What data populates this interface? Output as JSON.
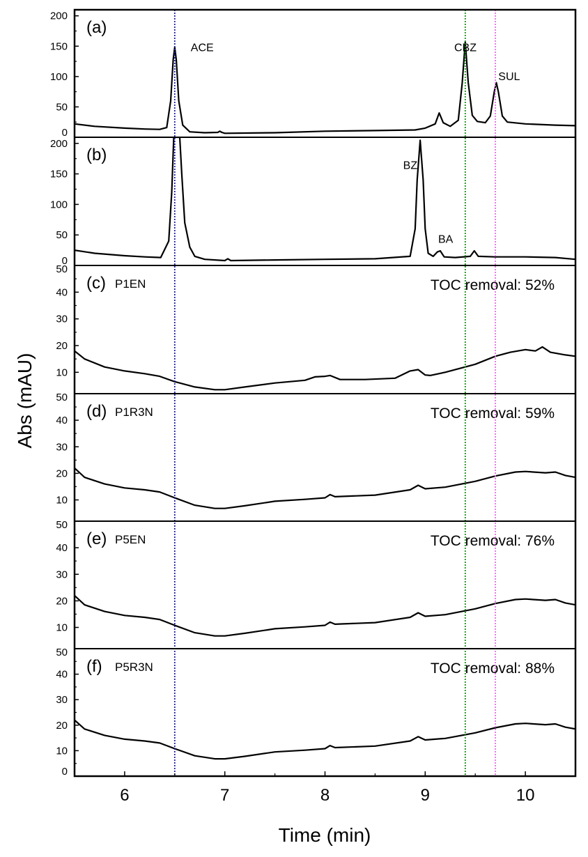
{
  "chart_data": {
    "type": "line",
    "xlabel": "Time (min)",
    "ylabel": "Abs (mAU)",
    "xlim": [
      5.5,
      10.5
    ],
    "x_ticks": [
      "6",
      "7",
      "8",
      "9",
      "10"
    ],
    "reference_lines": [
      {
        "name": "ACE",
        "x": 6.5,
        "color": "#1a1aa0"
      },
      {
        "name": "CBZ",
        "x": 9.4,
        "color": "#1c8a1c"
      },
      {
        "name": "SUL",
        "x": 9.7,
        "color": "#e070e0"
      }
    ],
    "panels": [
      {
        "label": "(a)",
        "sample": "",
        "toc": "",
        "ylim": [
          0,
          210
        ],
        "y_ticks": [
          "0",
          "50",
          "100",
          "150",
          "200"
        ],
        "annotations": [
          {
            "text": "ACE",
            "x": 6.66,
            "y": 142
          },
          {
            "text": "CBZ",
            "x": 9.29,
            "y": 142
          },
          {
            "text": "SUL",
            "x": 9.73,
            "y": 94
          }
        ],
        "points": [
          [
            5.5,
            22
          ],
          [
            5.7,
            18
          ],
          [
            6.0,
            15
          ],
          [
            6.2,
            13.5
          ],
          [
            6.35,
            13
          ],
          [
            6.42,
            16
          ],
          [
            6.46,
            60
          ],
          [
            6.485,
            128
          ],
          [
            6.5,
            148
          ],
          [
            6.515,
            128
          ],
          [
            6.54,
            60
          ],
          [
            6.58,
            20
          ],
          [
            6.65,
            9
          ],
          [
            6.8,
            7.5
          ],
          [
            6.93,
            8
          ],
          [
            6.95,
            10
          ],
          [
            6.97,
            8
          ],
          [
            7.0,
            6.5
          ],
          [
            7.5,
            7.5
          ],
          [
            8.0,
            10
          ],
          [
            8.5,
            11
          ],
          [
            8.9,
            12
          ],
          [
            9.0,
            15
          ],
          [
            9.1,
            22
          ],
          [
            9.14,
            40
          ],
          [
            9.18,
            24
          ],
          [
            9.25,
            18
          ],
          [
            9.33,
            28
          ],
          [
            9.37,
            90
          ],
          [
            9.4,
            157
          ],
          [
            9.43,
            90
          ],
          [
            9.47,
            36
          ],
          [
            9.52,
            26
          ],
          [
            9.6,
            24
          ],
          [
            9.65,
            35
          ],
          [
            9.69,
            75
          ],
          [
            9.71,
            90
          ],
          [
            9.73,
            75
          ],
          [
            9.77,
            35
          ],
          [
            9.82,
            25
          ],
          [
            10.0,
            22
          ],
          [
            10.3,
            20
          ],
          [
            10.5,
            19
          ]
        ]
      },
      {
        "label": "(b)",
        "sample": "",
        "toc": "",
        "ylim": [
          0,
          210
        ],
        "y_ticks": [
          "0",
          "50",
          "100",
          "150",
          "200"
        ],
        "annotations": [
          {
            "text": "BZ",
            "x": 8.78,
            "y": 158
          },
          {
            "text": "BA",
            "x": 9.13,
            "y": 37
          }
        ],
        "points": [
          [
            5.5,
            25
          ],
          [
            5.7,
            20
          ],
          [
            6.0,
            16
          ],
          [
            6.2,
            14
          ],
          [
            6.36,
            13
          ],
          [
            6.44,
            40
          ],
          [
            6.47,
            120
          ],
          [
            6.49,
            210
          ],
          [
            6.55,
            210
          ],
          [
            6.57,
            150
          ],
          [
            6.6,
            70
          ],
          [
            6.65,
            30
          ],
          [
            6.7,
            15
          ],
          [
            6.8,
            10
          ],
          [
            7.0,
            8
          ],
          [
            7.03,
            11
          ],
          [
            7.06,
            8
          ],
          [
            7.5,
            9
          ],
          [
            8.0,
            10
          ],
          [
            8.5,
            11
          ],
          [
            8.85,
            15
          ],
          [
            8.9,
            60
          ],
          [
            8.92,
            140
          ],
          [
            8.95,
            205
          ],
          [
            8.98,
            140
          ],
          [
            9.0,
            60
          ],
          [
            9.03,
            20
          ],
          [
            9.08,
            15
          ],
          [
            9.12,
            22
          ],
          [
            9.15,
            24
          ],
          [
            9.19,
            14
          ],
          [
            9.3,
            13
          ],
          [
            9.45,
            15
          ],
          [
            9.49,
            24
          ],
          [
            9.53,
            15
          ],
          [
            9.7,
            14
          ],
          [
            10.0,
            14
          ],
          [
            10.3,
            13
          ],
          [
            10.5,
            10
          ]
        ]
      },
      {
        "label": "(c)",
        "sample": "P1EN",
        "toc": "TOC removal: 52%",
        "ylim": [
          2,
          50
        ],
        "y_ticks": [
          "10",
          "20",
          "30",
          "40",
          "50"
        ],
        "annotations": [],
        "points": [
          [
            5.5,
            18
          ],
          [
            5.6,
            15
          ],
          [
            5.8,
            12
          ],
          [
            6.0,
            10.5
          ],
          [
            6.2,
            9.5
          ],
          [
            6.35,
            8.5
          ],
          [
            6.5,
            6.5
          ],
          [
            6.7,
            4.5
          ],
          [
            6.9,
            3.5
          ],
          [
            7.0,
            3.5
          ],
          [
            7.2,
            4.5
          ],
          [
            7.5,
            6
          ],
          [
            7.8,
            7
          ],
          [
            7.9,
            8.3
          ],
          [
            8.0,
            8.5
          ],
          [
            8.05,
            8.8
          ],
          [
            8.15,
            7.3
          ],
          [
            8.4,
            7.3
          ],
          [
            8.7,
            7.8
          ],
          [
            8.85,
            10.5
          ],
          [
            8.93,
            11
          ],
          [
            9.0,
            9
          ],
          [
            9.05,
            8.8
          ],
          [
            9.2,
            10
          ],
          [
            9.5,
            13
          ],
          [
            9.7,
            16
          ],
          [
            9.85,
            17.5
          ],
          [
            10.0,
            18.5
          ],
          [
            10.1,
            18
          ],
          [
            10.17,
            19.5
          ],
          [
            10.25,
            17.5
          ],
          [
            10.4,
            16.5
          ],
          [
            10.5,
            16
          ]
        ]
      },
      {
        "label": "(d)",
        "sample": "P1R3N",
        "toc": "TOC removal: 59%",
        "ylim": [
          2,
          50
        ],
        "y_ticks": [
          "10",
          "20",
          "30",
          "40",
          "50"
        ],
        "annotations": [],
        "points": [
          [
            5.5,
            22
          ],
          [
            5.6,
            18.5
          ],
          [
            5.8,
            16
          ],
          [
            6.0,
            14.5
          ],
          [
            6.2,
            13.8
          ],
          [
            6.35,
            13
          ],
          [
            6.5,
            10.8
          ],
          [
            6.7,
            8
          ],
          [
            6.9,
            6.8
          ],
          [
            7.0,
            6.8
          ],
          [
            7.2,
            7.8
          ],
          [
            7.5,
            9.5
          ],
          [
            7.8,
            10.2
          ],
          [
            8.0,
            10.8
          ],
          [
            8.05,
            12
          ],
          [
            8.1,
            11.2
          ],
          [
            8.5,
            11.8
          ],
          [
            8.85,
            13.8
          ],
          [
            8.93,
            15.5
          ],
          [
            9.0,
            14.2
          ],
          [
            9.2,
            14.8
          ],
          [
            9.5,
            17
          ],
          [
            9.7,
            19
          ],
          [
            9.9,
            20.5
          ],
          [
            10.0,
            20.7
          ],
          [
            10.2,
            20.2
          ],
          [
            10.3,
            20.5
          ],
          [
            10.4,
            19.2
          ],
          [
            10.5,
            18.5
          ]
        ]
      },
      {
        "label": "(e)",
        "sample": "P5EN",
        "toc": "TOC removal: 76%",
        "ylim": [
          2,
          50
        ],
        "y_ticks": [
          "10",
          "20",
          "30",
          "40",
          "50"
        ],
        "annotations": [],
        "points": [
          [
            5.5,
            22
          ],
          [
            5.6,
            18.5
          ],
          [
            5.8,
            16
          ],
          [
            6.0,
            14.5
          ],
          [
            6.2,
            13.8
          ],
          [
            6.35,
            13
          ],
          [
            6.5,
            10.8
          ],
          [
            6.7,
            8
          ],
          [
            6.9,
            6.8
          ],
          [
            7.0,
            6.8
          ],
          [
            7.2,
            7.8
          ],
          [
            7.5,
            9.5
          ],
          [
            7.8,
            10.2
          ],
          [
            8.0,
            10.8
          ],
          [
            8.05,
            12
          ],
          [
            8.1,
            11.2
          ],
          [
            8.5,
            11.8
          ],
          [
            8.85,
            13.8
          ],
          [
            8.93,
            15.5
          ],
          [
            9.0,
            14.2
          ],
          [
            9.2,
            14.8
          ],
          [
            9.5,
            17
          ],
          [
            9.7,
            19
          ],
          [
            9.9,
            20.5
          ],
          [
            10.0,
            20.7
          ],
          [
            10.2,
            20.2
          ],
          [
            10.3,
            20.5
          ],
          [
            10.4,
            19.2
          ],
          [
            10.5,
            18.5
          ]
        ]
      },
      {
        "label": "(f)",
        "sample": "P5R3N",
        "toc": "TOC removal: 88%",
        "ylim": [
          0,
          50
        ],
        "y_ticks": [
          "0",
          "10",
          "20",
          "30",
          "40",
          "50"
        ],
        "annotations": [],
        "points": [
          [
            5.5,
            22
          ],
          [
            5.6,
            18.5
          ],
          [
            5.8,
            16
          ],
          [
            6.0,
            14.5
          ],
          [
            6.2,
            13.8
          ],
          [
            6.35,
            13
          ],
          [
            6.5,
            10.8
          ],
          [
            6.7,
            8
          ],
          [
            6.9,
            6.8
          ],
          [
            7.0,
            6.8
          ],
          [
            7.2,
            7.8
          ],
          [
            7.5,
            9.5
          ],
          [
            7.8,
            10.2
          ],
          [
            8.0,
            10.8
          ],
          [
            8.05,
            12
          ],
          [
            8.1,
            11.2
          ],
          [
            8.5,
            11.8
          ],
          [
            8.85,
            13.8
          ],
          [
            8.93,
            15.5
          ],
          [
            9.0,
            14.2
          ],
          [
            9.2,
            14.8
          ],
          [
            9.5,
            17
          ],
          [
            9.7,
            19
          ],
          [
            9.9,
            20.5
          ],
          [
            10.0,
            20.7
          ],
          [
            10.2,
            20.2
          ],
          [
            10.3,
            20.5
          ],
          [
            10.4,
            19.2
          ],
          [
            10.5,
            18.5
          ]
        ]
      }
    ]
  }
}
